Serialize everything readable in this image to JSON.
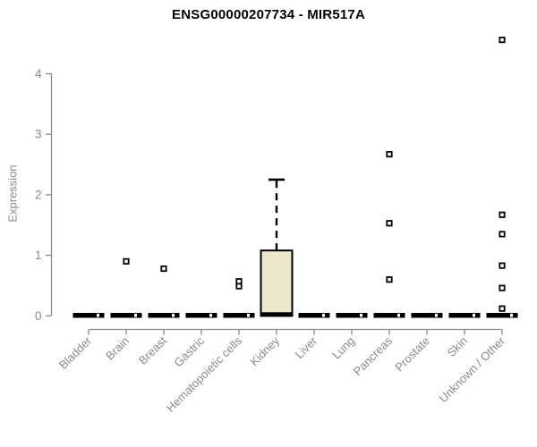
{
  "page": {
    "background": "#ffffff"
  },
  "chart_data": {
    "type": "boxplot",
    "title": "ENSG00000207734 - MIR517A",
    "xlabel": "",
    "ylabel": "Expression",
    "grid": false,
    "legend": false,
    "yticks": [
      0,
      1,
      2,
      3,
      4
    ],
    "ylim": [
      0,
      4.7
    ],
    "categories": [
      "Bladder",
      "Brain",
      "Breast",
      "Gastric",
      "Hematopoietic cells",
      "Kidney",
      "Liver",
      "Lung",
      "Pancreas",
      "Prostate",
      "Skin",
      "Unknown / Other"
    ],
    "boxes": [
      {
        "category": "Bladder",
        "whisker_low": 0,
        "q1": 0,
        "median": 0,
        "q3": 0,
        "whisker_high": 0,
        "outliers": []
      },
      {
        "category": "Brain",
        "whisker_low": 0,
        "q1": 0,
        "median": 0,
        "q3": 0,
        "whisker_high": 0,
        "outliers": [
          0.9
        ]
      },
      {
        "category": "Breast",
        "whisker_low": 0,
        "q1": 0,
        "median": 0,
        "q3": 0,
        "whisker_high": 0,
        "outliers": [
          0.78
        ]
      },
      {
        "category": "Gastric",
        "whisker_low": 0,
        "q1": 0,
        "median": 0,
        "q3": 0,
        "whisker_high": 0,
        "outliers": []
      },
      {
        "category": "Hematopoietic cells",
        "whisker_low": 0,
        "q1": 0,
        "median": 0,
        "q3": 0,
        "whisker_high": 0,
        "outliers": [
          0.57,
          0.49
        ]
      },
      {
        "category": "Kidney",
        "whisker_low": 0,
        "q1": 0,
        "median": 0,
        "q3": 1.08,
        "whisker_high": 2.25,
        "outliers": []
      },
      {
        "category": "Liver",
        "whisker_low": 0,
        "q1": 0,
        "median": 0,
        "q3": 0,
        "whisker_high": 0,
        "outliers": []
      },
      {
        "category": "Lung",
        "whisker_low": 0,
        "q1": 0,
        "median": 0,
        "q3": 0,
        "whisker_high": 0,
        "outliers": []
      },
      {
        "category": "Pancreas",
        "whisker_low": 0,
        "q1": 0,
        "median": 0,
        "q3": 0,
        "whisker_high": 0,
        "outliers": [
          2.67,
          1.53,
          0.6
        ]
      },
      {
        "category": "Prostate",
        "whisker_low": 0,
        "q1": 0,
        "median": 0,
        "q3": 0,
        "whisker_high": 0,
        "outliers": []
      },
      {
        "category": "Skin",
        "whisker_low": 0,
        "q1": 0,
        "median": 0,
        "q3": 0,
        "whisker_high": 0,
        "outliers": []
      },
      {
        "category": "Unknown / Other",
        "whisker_low": 0,
        "q1": 0,
        "median": 0,
        "q3": 0,
        "whisker_high": 0,
        "outliers": [
          4.56,
          1.67,
          1.35,
          0.83,
          0.46,
          0.12
        ]
      }
    ],
    "colors": {
      "box_fill": "#ece7cd",
      "box_border": "#000000",
      "median": "#000000",
      "whisker": "#000000",
      "outlier_border": "#000000",
      "outlier_fill": "#ffffff",
      "axis": "#8a8a8a",
      "tick_label": "#8a8a8a",
      "title": "#000000"
    }
  }
}
